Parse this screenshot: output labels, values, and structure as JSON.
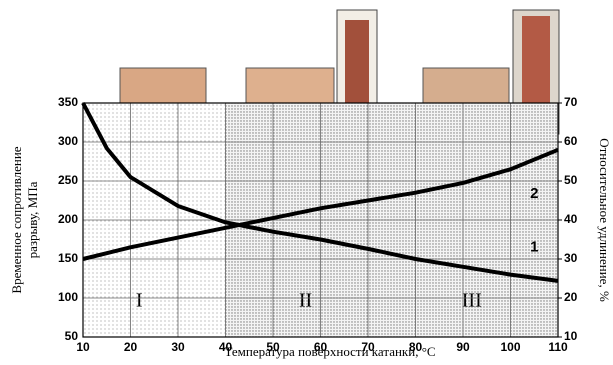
{
  "chart_data": {
    "type": "line",
    "xlabel": "Температура поверхности катанки, °С",
    "ylabel": [
      "Временное сопротивление",
      "разрыву, МПа"
    ],
    "y2label": "Относительное удлинение, %",
    "x": [
      10,
      15,
      20,
      30,
      40,
      50,
      60,
      70,
      80,
      90,
      100,
      110
    ],
    "series": [
      {
        "name": "1",
        "color": "#000000",
        "values": [
          350,
          292,
          255,
          218,
          197,
          185,
          175,
          163,
          150,
          140,
          130,
          122
        ]
      },
      {
        "name": "2",
        "color": "#000000",
        "axis": "y2",
        "values": [
          30,
          31.5,
          33,
          35.5,
          38,
          40.5,
          43,
          45,
          47,
          49.5,
          53,
          58
        ]
      }
    ],
    "annotations": [
      {
        "text": "1",
        "x": 105,
        "y": 165
      },
      {
        "text": "2",
        "x": 105,
        "y": 233
      }
    ],
    "zones": [
      {
        "label": "I",
        "from": 10,
        "to": 40
      },
      {
        "label": "II",
        "from": 40,
        "to": 80
      },
      {
        "label": "III",
        "from": 80,
        "to": 110
      }
    ],
    "xlim": [
      10,
      110
    ],
    "xticks": [
      10,
      20,
      30,
      40,
      50,
      60,
      70,
      80,
      90,
      100,
      110
    ],
    "ylim": [
      50,
      350
    ],
    "yticks": [
      50,
      100,
      150,
      200,
      250,
      300,
      350
    ],
    "y2lim": [
      10,
      70
    ],
    "y2ticks": [
      10,
      20,
      30,
      40,
      50,
      60,
      70
    ],
    "grid": true
  }
}
